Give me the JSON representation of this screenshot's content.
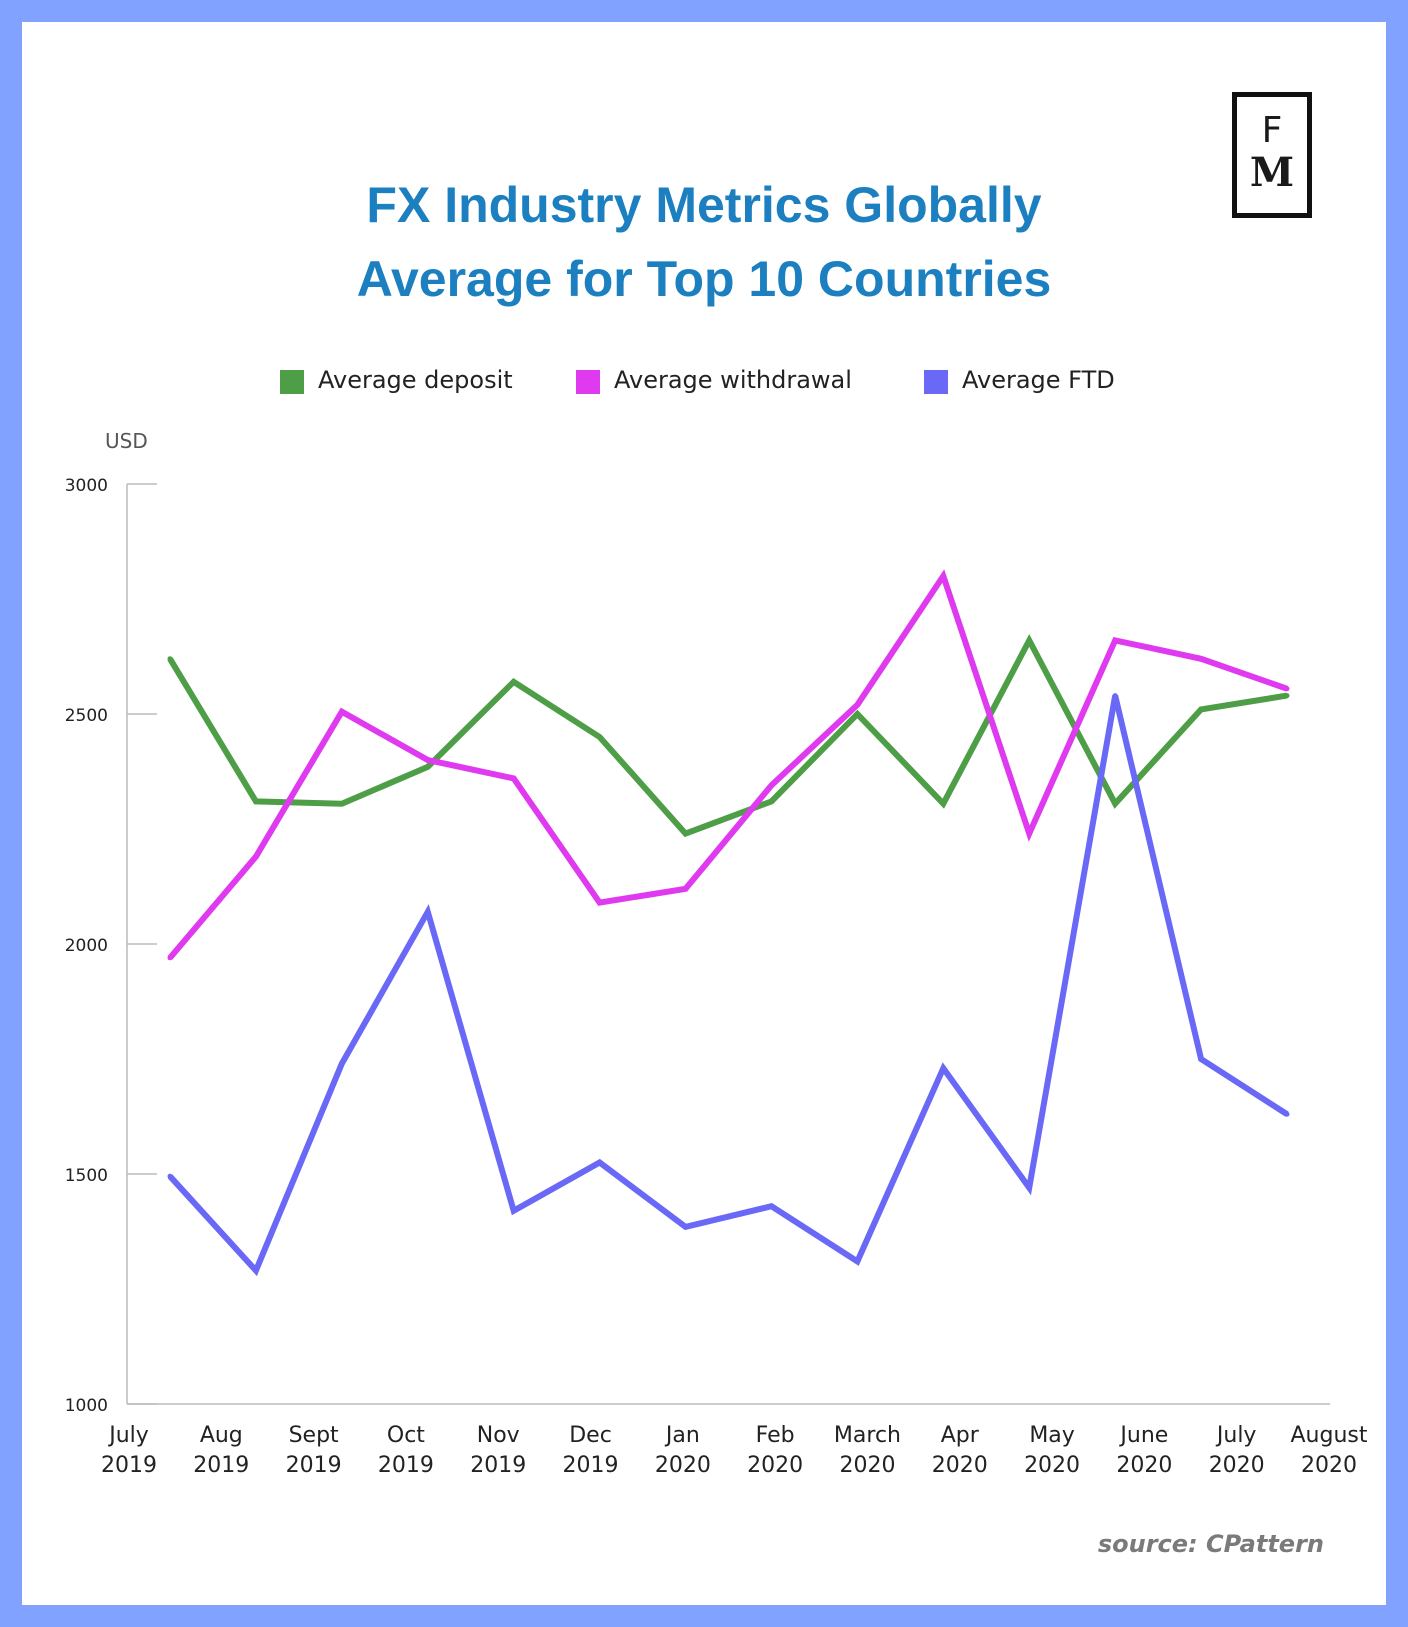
{
  "brand": {
    "logo_top": "F",
    "logo_bottom": "M"
  },
  "header": {
    "title_line1": "FX Industry Metrics Globally",
    "title_line2": "Average for Top 10 Countries"
  },
  "legend": [
    {
      "label": "Average deposit",
      "color": "#4e9e47"
    },
    {
      "label": "Average withdrawal",
      "color": "#e03af0"
    },
    {
      "label": "Average FTD",
      "color": "#6a68f6"
    }
  ],
  "chart_data": {
    "type": "line",
    "ylabel": "USD",
    "ylim": [
      1000,
      3000
    ],
    "yticks": [
      1000,
      1500,
      2000,
      2500,
      3000
    ],
    "grid": false,
    "legend_position": "top",
    "categories": [
      [
        "July",
        "2019"
      ],
      [
        "Aug",
        "2019"
      ],
      [
        "Sept",
        "2019"
      ],
      [
        "Oct",
        "2019"
      ],
      [
        "Nov",
        "2019"
      ],
      [
        "Dec",
        "2019"
      ],
      [
        "Jan",
        "2020"
      ],
      [
        "Feb",
        "2020"
      ],
      [
        "March",
        "2020"
      ],
      [
        "Apr",
        "2020"
      ],
      [
        "May",
        "2020"
      ],
      [
        "June",
        "2020"
      ],
      [
        "July",
        "2020"
      ],
      [
        "August",
        "2020"
      ]
    ],
    "series": [
      {
        "name": "Average deposit",
        "color": "#4e9e47",
        "values": [
          2620,
          2310,
          2305,
          2385,
          2570,
          2450,
          2240,
          2310,
          2500,
          2305,
          2660,
          2305,
          2510,
          2540
        ]
      },
      {
        "name": "Average withdrawal",
        "color": "#e03af0",
        "values": [
          1970,
          2190,
          2505,
          2400,
          2360,
          2090,
          2120,
          2345,
          2520,
          2800,
          2240,
          2660,
          2620,
          2555
        ]
      },
      {
        "name": "Average FTD",
        "color": "#6a68f6",
        "values": [
          1495,
          1290,
          1740,
          2070,
          1420,
          1525,
          1385,
          1430,
          1310,
          1730,
          1470,
          2540,
          1750,
          1630
        ]
      }
    ]
  },
  "source": "source: CPattern"
}
